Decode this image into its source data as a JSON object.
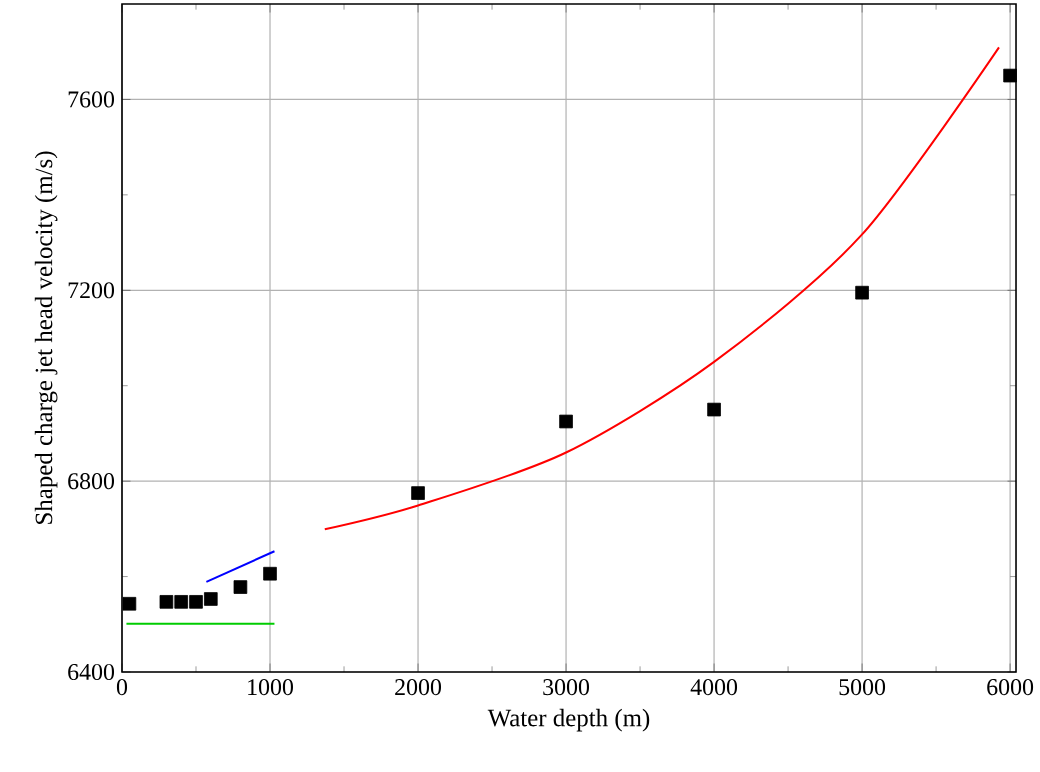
{
  "chart_data": {
    "type": "scatter",
    "xlabel": "Water depth  (m)",
    "ylabel": "Shaped charge jet head velocity  (m/s)",
    "xlim": [
      0,
      6040
    ],
    "ylim": [
      6400,
      7800
    ],
    "xticks": [
      0,
      1000,
      2000,
      3000,
      4000,
      5000,
      6000
    ],
    "yticks": [
      6400,
      6800,
      7200,
      7600
    ],
    "grid": true,
    "marker": "square",
    "series": [
      {
        "color": "#000000",
        "x": [
          50,
          300,
          400,
          500,
          600,
          800,
          1000,
          2000,
          3000,
          4000,
          5000,
          6000
        ],
        "values": [
          6543,
          6547,
          6547,
          6547,
          6553,
          6578,
          6606,
          6775,
          6925,
          6950,
          7195,
          7650
        ]
      },
      {
        "type": "line",
        "marker": "none",
        "color": "#ff0000",
        "x": [
          1370,
          2000,
          3000,
          4000,
          5000,
          5925
        ],
        "values": [
          6699,
          6749,
          6860,
          7050,
          7317,
          7709
        ]
      },
      {
        "type": "line",
        "marker": "none",
        "color": "#0000ff",
        "x": [
          570,
          1030
        ],
        "values": [
          6589,
          6653
        ]
      },
      {
        "type": "line",
        "marker": "none",
        "color": "#00cc00",
        "x": [
          30,
          1030
        ],
        "values": [
          6501,
          6501
        ]
      }
    ]
  }
}
